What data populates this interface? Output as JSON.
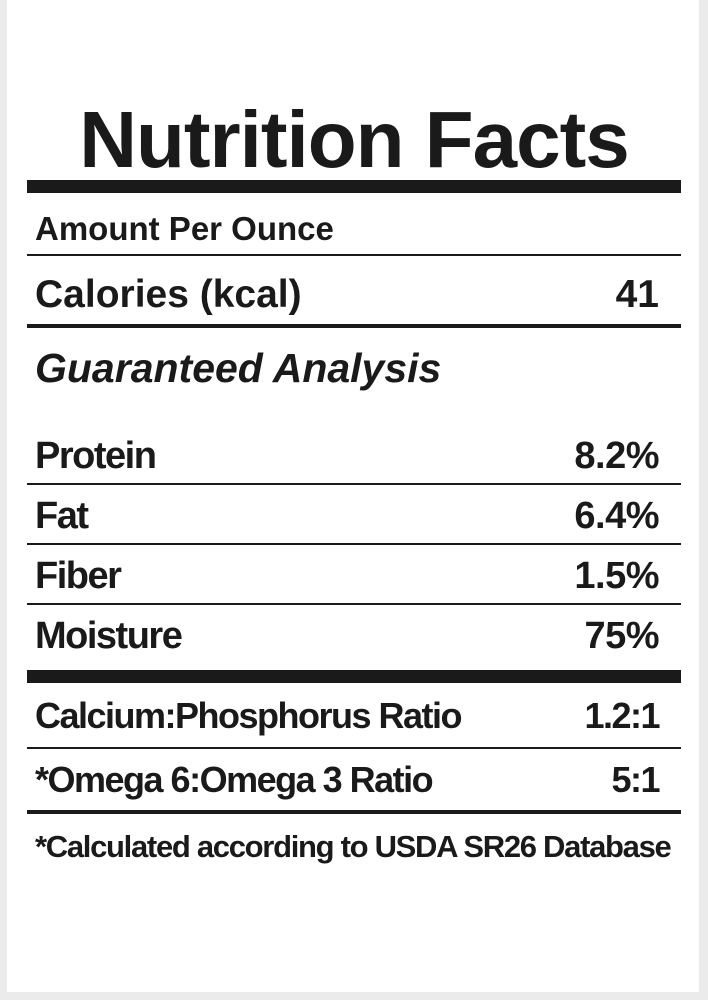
{
  "title": "Nutrition Facts",
  "amount_per": "Amount Per Ounce",
  "calories": {
    "label": "Calories (kcal)",
    "value": "41"
  },
  "section_heading": "Guaranteed Analysis",
  "nutrients": [
    {
      "label": "Protein",
      "value": "8.2%"
    },
    {
      "label": "Fat",
      "value": "6.4%"
    },
    {
      "label": "Fiber",
      "value": "1.5%"
    },
    {
      "label": "Moisture",
      "value": "75%"
    }
  ],
  "ratios": [
    {
      "label": "Calcium:Phosphorus Ratio",
      "value": "1.2:1"
    },
    {
      "label": "*Omega 6:Omega 3 Ratio",
      "value": "5:1"
    }
  ],
  "footnote": "*Calculated according to USDA SR26 Database"
}
